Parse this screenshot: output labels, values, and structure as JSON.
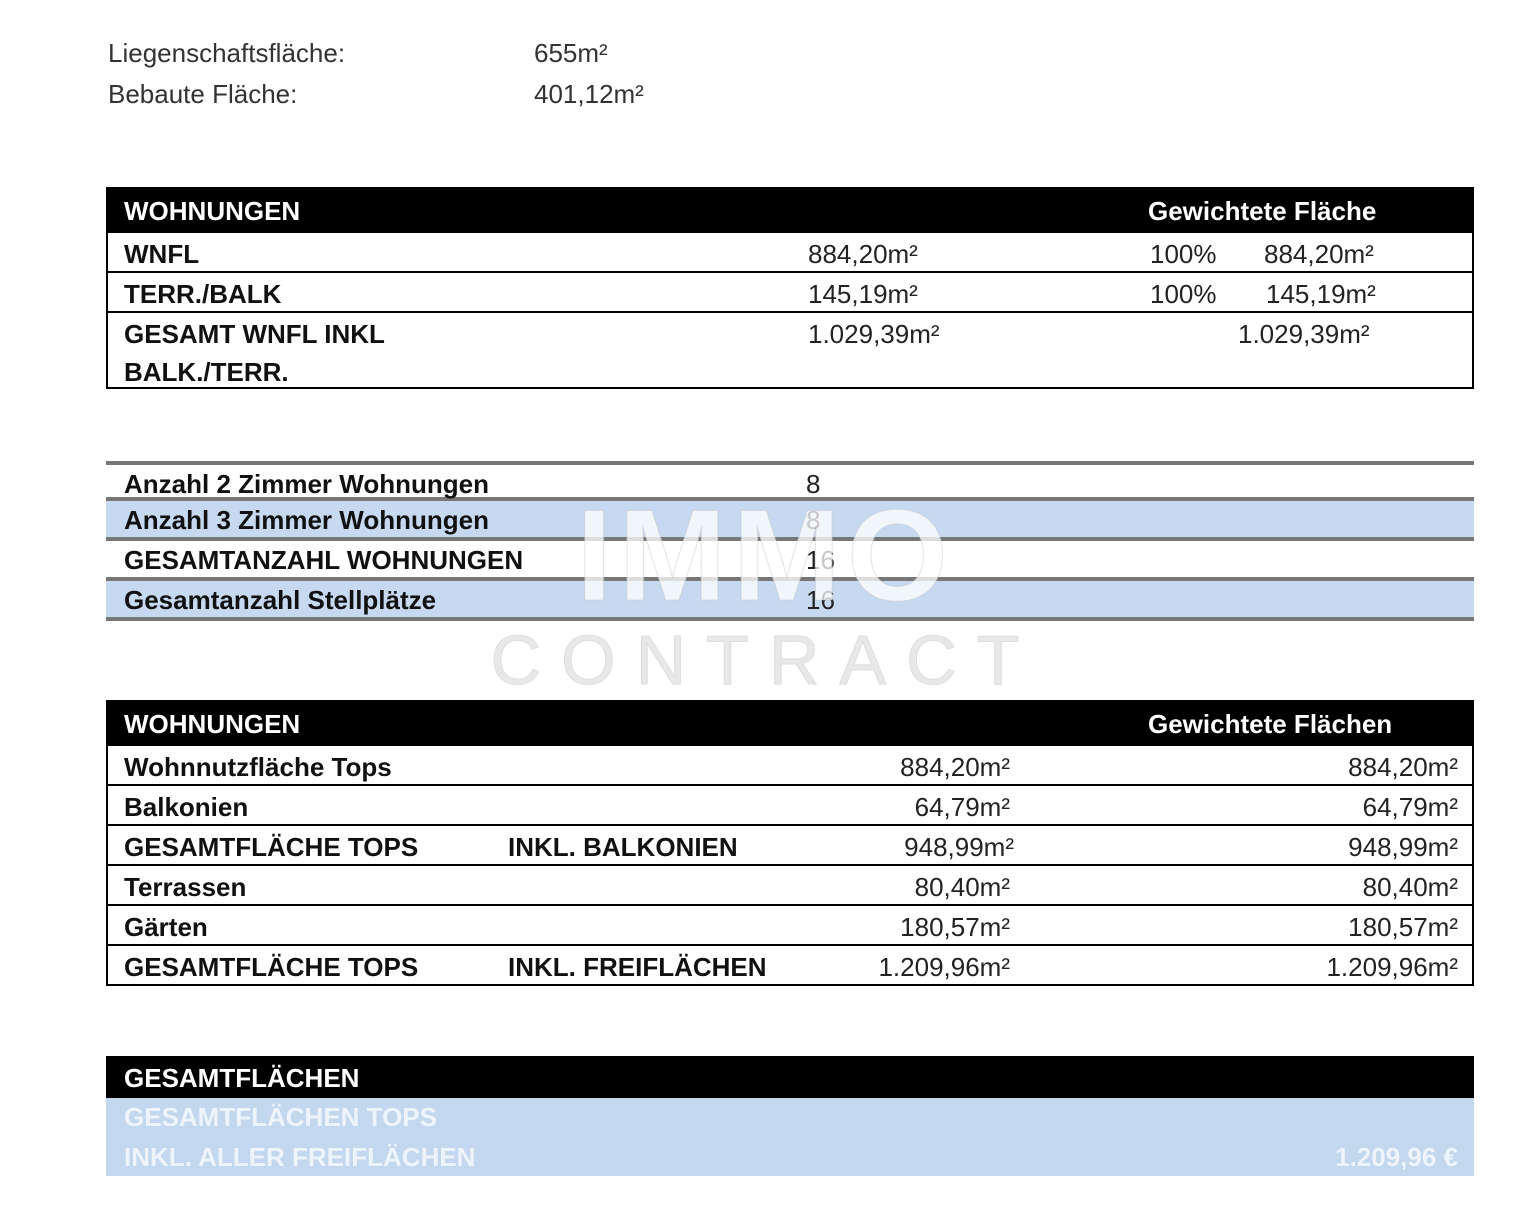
{
  "info": [
    {
      "label": "Liegenschaftsfläche:",
      "value": "655m²"
    },
    {
      "label": "Bebaute Fläche:",
      "value": "401,12m²"
    }
  ],
  "table1": {
    "header": {
      "title": "WOHNUNGEN",
      "weighted": "Gewichtete Fläche"
    },
    "rows": [
      {
        "label": "WNFL",
        "area": "884,20m²",
        "pct": "100%",
        "weighted": "884,20m²"
      },
      {
        "label": "TERR./BALK",
        "area": "145,19m²",
        "pct": "100%",
        "weighted": "145,19m²"
      },
      {
        "label": "GESAMT WNFL INKL",
        "label2": "BALK./TERR.",
        "area": "1.029,39m²",
        "weighted": "1.029,39m²"
      }
    ]
  },
  "table2": {
    "rows": [
      {
        "label": "Anzahl 2 Zimmer Wohnungen",
        "value": "8"
      },
      {
        "label": "Anzahl 3 Zimmer Wohnungen",
        "value": "8"
      },
      {
        "label": "GESAMTANZAHL WOHNUNGEN",
        "value": "16"
      },
      {
        "label": "Gesamtanzahl Stellplätze",
        "value": "16"
      }
    ]
  },
  "table3": {
    "header": {
      "title": "WOHNUNGEN",
      "weighted": "Gewichtete Flächen"
    },
    "rows": [
      {
        "label": "Wohnnutzfläche Tops",
        "area": "884,20m²",
        "weighted": "884,20m²"
      },
      {
        "label": "Balkonien",
        "area": "64,79m²",
        "weighted": "64,79m²"
      },
      {
        "label": "GESAMTFLÄCHE TOPS",
        "label2": "INKL. BALKONIEN",
        "area": "948,99m²",
        "weighted": "948,99m²"
      },
      {
        "label": "Terrassen",
        "area": "80,40m²",
        "weighted": "80,40m²"
      },
      {
        "label": "Gärten",
        "area": "180,57m²",
        "weighted": "180,57m²"
      },
      {
        "label": "GESAMTFLÄCHE TOPS",
        "label2": "INKL. FREIFLÄCHEN",
        "area": "1.209,96m²",
        "weighted": "1.209,96m²"
      }
    ]
  },
  "table4": {
    "header": "GESAMTFLÄCHEN",
    "line1": "GESAMTFLÄCHEN TOPS",
    "line2": "INKL. ALLER FREIFLÄCHEN",
    "value": "1.209,96 €"
  },
  "watermark": {
    "line1": "IMMO",
    "line2": "CONTRACT"
  }
}
